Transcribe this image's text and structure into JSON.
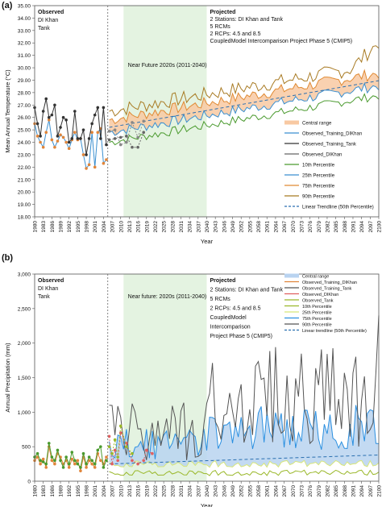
{
  "chart_data": [
    {
      "panel": "(a)",
      "type": "line",
      "ylabel": "Mean Annual Temperature (°C)",
      "xlabel": "Year",
      "ylim": [
        18.0,
        35.0
      ],
      "ytick_labels": [
        "18.00",
        "19.00",
        "20.00",
        "21.00",
        "22.00",
        "23.00",
        "24.00",
        "25.00",
        "26.00",
        "27.00",
        "28.00",
        "29.00",
        "30.00",
        "31.00",
        "32.00",
        "33.00",
        "34.00",
        "35.00"
      ],
      "x_range": [
        1980,
        2100
      ],
      "x_tick_labels": [
        "1980",
        "1983",
        "1986",
        "1989",
        "1992",
        "1995",
        "1998",
        "2001",
        "2004",
        "2007",
        "2010",
        "2013",
        "2016",
        "2019",
        "2022",
        "2025",
        "2028",
        "2031",
        "2034",
        "2037",
        "2040",
        "2043",
        "2046",
        "2049",
        "2052",
        "2055",
        "2058",
        "2061",
        "2064",
        "2067",
        "2070",
        "2073",
        "2076",
        "2079",
        "2082",
        "2085",
        "2088",
        "2091",
        "2094",
        "2097",
        "2100"
      ],
      "observed_text": [
        "Observed",
        "DI Khan",
        "Tank"
      ],
      "projected_text": [
        "Projected",
        "2 Stations: DI Khan and Tank",
        "5 RCMs",
        "2 RCPs: 4.5 and 8.5",
        "CoupledModel Intercomparison Project Phase 5 (CMIP5)"
      ],
      "near_future_label": "Near Future 2020s (2011-2040)",
      "near_future_range": [
        2011,
        2040
      ],
      "divider_year": 2005.5,
      "legend": [
        "Central range",
        "Observed_Training_DIKhan",
        "Observed_Training_Tank",
        "Observed_DIKhan",
        "10th Percentile",
        "25th Percentile",
        "75th Percentile",
        "90th Percentile",
        "Linear Trendline (50th Percentile)"
      ],
      "series": [
        {
          "key": "obs_dikhan",
          "x": [
            1980,
            1981,
            1982,
            1983,
            1984,
            1985,
            1986,
            1987,
            1988,
            1989,
            1990,
            1991,
            1992,
            1993,
            1994,
            1995,
            1996,
            1997,
            1998,
            1999,
            2000,
            2001,
            2002,
            2003,
            2004,
            2005
          ],
          "values": [
            25.5,
            24.5,
            24.0,
            23.6,
            24.8,
            25.8,
            24.2,
            23.6,
            24.1,
            24.6,
            24.4,
            24.0,
            23.5,
            24.2,
            24.8,
            24.2,
            24.3,
            23.0,
            21.9,
            22.2,
            24.8,
            22.0,
            24.8,
            25.1,
            22.3,
            22.6
          ]
        },
        {
          "key": "obs_tank",
          "x": [
            1980,
            1981,
            1982,
            1983,
            1984,
            1985,
            1986,
            1987,
            1988,
            1989,
            1990,
            1991,
            1992,
            1993,
            1994,
            1995,
            1996,
            1997,
            1998,
            1999,
            2000,
            2001,
            2002,
            2003,
            2004,
            2005
          ],
          "values": [
            26.8,
            25.5,
            24.5,
            26.5,
            27.5,
            26.0,
            26.2,
            27.0,
            24.5,
            25.2,
            26.0,
            25.8,
            24.0,
            24.3,
            26.5,
            24.3,
            24.3,
            25.0,
            23.0,
            24.3,
            25.5,
            26.2,
            26.8,
            24.3,
            26.8,
            23.8
          ]
        },
        {
          "key": "obs_dikhan_test",
          "x": [
            2006,
            2008,
            2010,
            2012,
            2014,
            2016,
            2018
          ],
          "values": [
            24.2,
            24.3,
            24.4,
            24.5,
            23.6,
            23.6,
            24.8
          ]
        },
        {
          "key": "obs_tank_test",
          "x": [
            2006,
            2008,
            2010,
            2012,
            2014,
            2016,
            2018
          ],
          "values": [
            24.9,
            25.0,
            23.8,
            24.0,
            25.6,
            24.4,
            25.7
          ]
        }
      ],
      "projection": {
        "start": 2006,
        "end": 2100,
        "base": 24.6,
        "slope": 0.04,
        "p10": -0.6,
        "p25": 0.2,
        "p75": 1.2,
        "p90": 1.9,
        "p90_final": 32.5
      }
    },
    {
      "panel": "(b)",
      "type": "line",
      "ylabel": "Annual Precipitation (mm)",
      "xlabel": "Year",
      "ylim": [
        0,
        3000
      ],
      "ytick_labels": [
        "0",
        "500",
        "1,000",
        "1,500",
        "2,000",
        "2,500",
        "3,000"
      ],
      "x_range": [
        1980,
        2100
      ],
      "x_tick_labels": [
        "1980",
        "1983",
        "1986",
        "1989",
        "1992",
        "1995",
        "1998",
        "2001",
        "2004",
        "2007",
        "2010",
        "2013",
        "2016",
        "2019",
        "2022",
        "2025",
        "2028",
        "2031",
        "2034",
        "2037",
        "2040",
        "2043",
        "2046",
        "2049",
        "2052",
        "2055",
        "2058",
        "2061",
        "2064",
        "2067",
        "2070",
        "2073",
        "2076",
        "2079",
        "2082",
        "2085",
        "2088",
        "2091",
        "2094",
        "2097",
        "2100"
      ],
      "observed_text": [
        "Observed",
        "DI Khan",
        "Tank"
      ],
      "projected_text": [
        "Projected",
        "2 Stations: DI Khan and Tank",
        "5 RCMs",
        "2 RCPs: 4.5 and 8.5",
        "CoupledModel",
        "Intercomparison",
        " Project Phase 5 (CMIP5)"
      ],
      "near_future_label": "Near future: 2020s (2011-2040)",
      "near_future_range": [
        2011,
        2040
      ],
      "divider_year": 2005.5,
      "legend": [
        "Central range",
        "Observed_Training_DIKhan",
        "Observed_Training_Tank",
        "Observed_DIKhan",
        "Observed_Tank",
        "10th Percentile",
        "25th Percentile",
        "75th Percentile",
        "90th Percentile",
        "Linear trendline (50th Percentile)"
      ],
      "series": [
        {
          "key": "obs_dikhan",
          "x": [
            1980,
            1981,
            1982,
            1983,
            1984,
            1985,
            1986,
            1987,
            1988,
            1989,
            1990,
            1991,
            1992,
            1993,
            1994,
            1995,
            1996,
            1997,
            1998,
            1999,
            2000,
            2001,
            2002,
            2003,
            2004,
            2005
          ],
          "values": [
            300,
            350,
            250,
            320,
            200,
            500,
            300,
            250,
            400,
            350,
            250,
            300,
            200,
            320,
            250,
            300,
            150,
            350,
            200,
            300,
            250,
            200,
            400,
            300,
            250,
            350
          ]
        },
        {
          "key": "obs_tank",
          "x": [
            1980,
            1981,
            1982,
            1983,
            1984,
            1985,
            1986,
            1987,
            1988,
            1989,
            1990,
            1991,
            1992,
            1993,
            1994,
            1995,
            1996,
            1997,
            1998,
            1999,
            2000,
            2001,
            2002,
            2003,
            2004,
            2005
          ],
          "values": [
            350,
            400,
            300,
            280,
            250,
            550,
            350,
            300,
            450,
            300,
            200,
            350,
            250,
            420,
            300,
            250,
            200,
            400,
            250,
            350,
            300,
            250,
            450,
            500,
            200,
            300
          ]
        },
        {
          "key": "obs_dikhan_test",
          "x": [
            2006,
            2007,
            2008,
            2009,
            2010,
            2012,
            2014,
            2016,
            2018,
            2019,
            2021
          ],
          "values": [
            650,
            250,
            450,
            300,
            700,
            550,
            300,
            250,
            300,
            450,
            400
          ]
        },
        {
          "key": "obs_tank_test",
          "x": [
            2006,
            2007,
            2008,
            2009,
            2010,
            2012,
            2014
          ],
          "values": [
            500,
            400,
            600,
            350,
            800,
            500,
            400
          ]
        }
      ],
      "projection": {
        "start": 2006,
        "end": 2100,
        "central_low": 200,
        "central_high": 600,
        "trend_start": 250,
        "trend_end": 380,
        "p90_peak": 2400
      }
    }
  ]
}
